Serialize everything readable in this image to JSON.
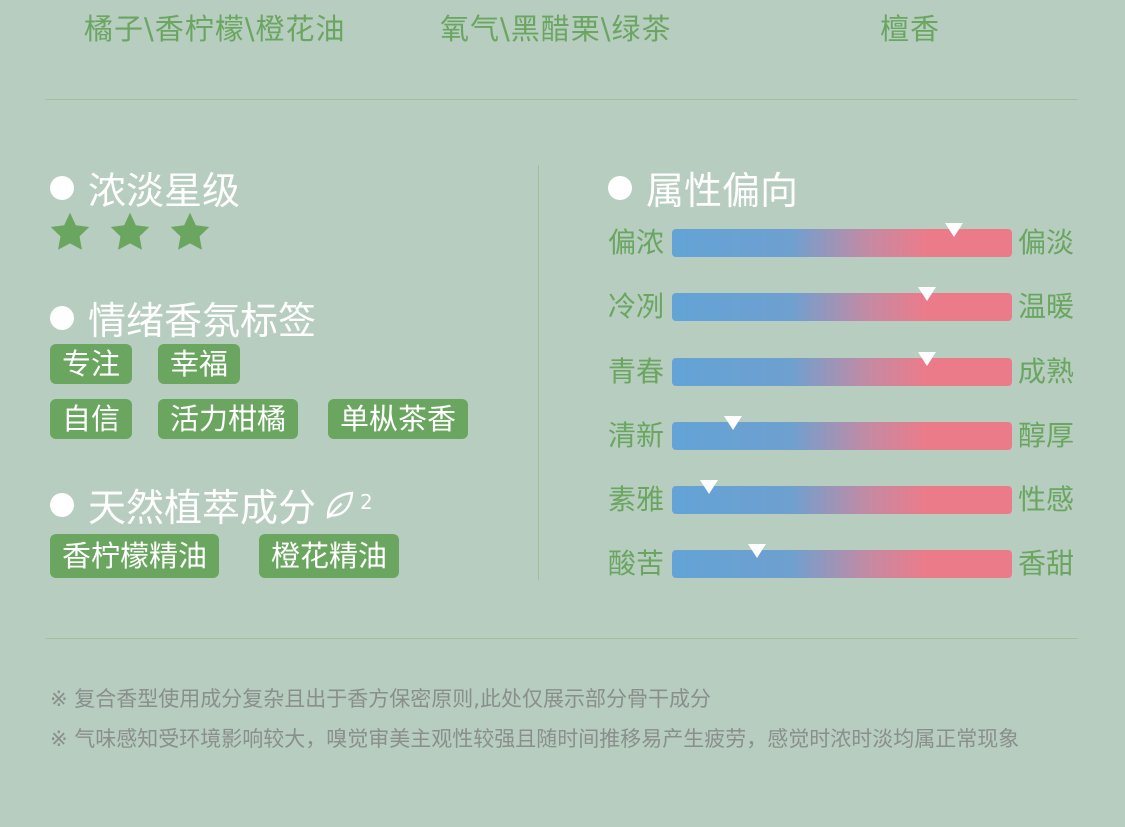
{
  "top_notes": [
    "橘子\\香柠檬\\橙花油",
    "氧气\\黑醋栗\\绿茶",
    "檀香"
  ],
  "intensity": {
    "title": "浓淡星级",
    "stars": 3
  },
  "mood": {
    "title": "情绪香氛标签",
    "tags": [
      "专注",
      "幸福",
      "自信",
      "活力柑橘",
      "单枞茶香"
    ]
  },
  "ingredients": {
    "title": "天然植萃成分",
    "superscript": "2",
    "tags": [
      "香柠檬精油",
      "橙花精油"
    ]
  },
  "attributes": {
    "title": "属性偏向",
    "rows": [
      {
        "left": "偏浓",
        "right": "偏淡",
        "value": 0.83
      },
      {
        "left": "冷冽",
        "right": "温暖",
        "value": 0.75
      },
      {
        "left": "青春",
        "right": "成熟",
        "value": 0.75
      },
      {
        "left": "清新",
        "right": "醇厚",
        "value": 0.18
      },
      {
        "left": "素雅",
        "right": "性感",
        "value": 0.11
      },
      {
        "left": "酸苦",
        "right": "香甜",
        "value": 0.25
      }
    ]
  },
  "footnotes": [
    "※ 复合香型使用成分复杂且出于香方保密原则,此处仅展示部分骨干成分",
    "※ 气味感知受环境影响较大，嗅觉审美主观性较强且随时间推移易产生疲劳，感觉时浓时淡均属正常现象"
  ],
  "colors": {
    "background": "#b6cdc0",
    "accent_green": "#6aa660",
    "bar_blue": "#63a3d6",
    "bar_pink": "#ec7b8a"
  }
}
